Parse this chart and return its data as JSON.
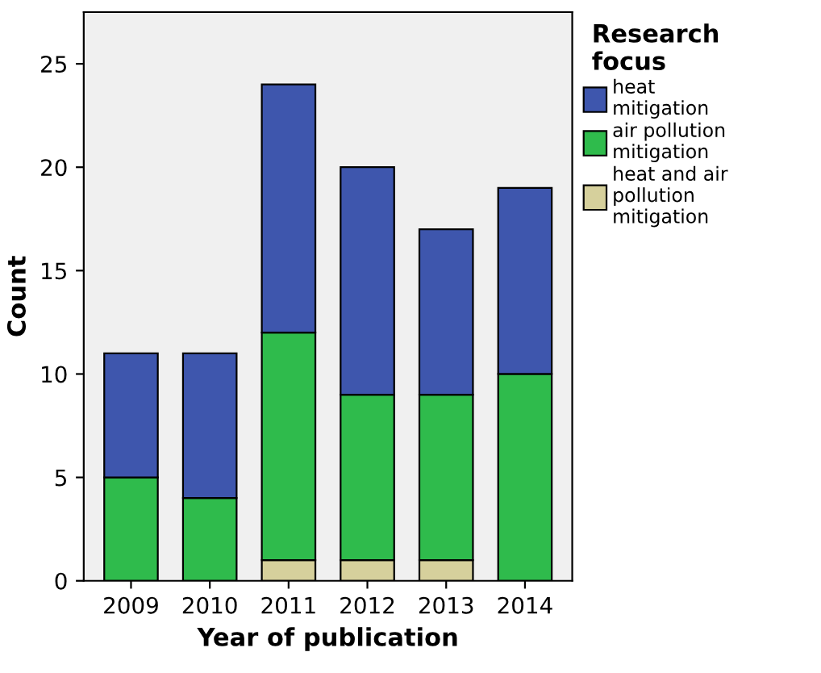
{
  "chart_data": {
    "type": "bar",
    "stacked": true,
    "xlabel": "Year of publication",
    "ylabel": "Count",
    "legend_title": "Research focus",
    "categories": [
      "2009",
      "2010",
      "2011",
      "2012",
      "2013",
      "2014"
    ],
    "series": [
      {
        "name": "heat and air pollution mitigation",
        "color": "#d6d09c",
        "values": [
          0,
          0,
          1,
          1,
          1,
          0
        ]
      },
      {
        "name": "air pollution mitigation",
        "color": "#2fbb4c",
        "values": [
          5,
          4,
          11,
          8,
          8,
          10
        ]
      },
      {
        "name": "heat mitigation",
        "color": "#3e56ad",
        "values": [
          6,
          7,
          12,
          11,
          8,
          9
        ]
      }
    ],
    "ylim": [
      0,
      27.5
    ],
    "yticks": [
      0,
      5,
      10,
      15,
      20,
      25
    ],
    "grid": false,
    "legend": "top right"
  }
}
